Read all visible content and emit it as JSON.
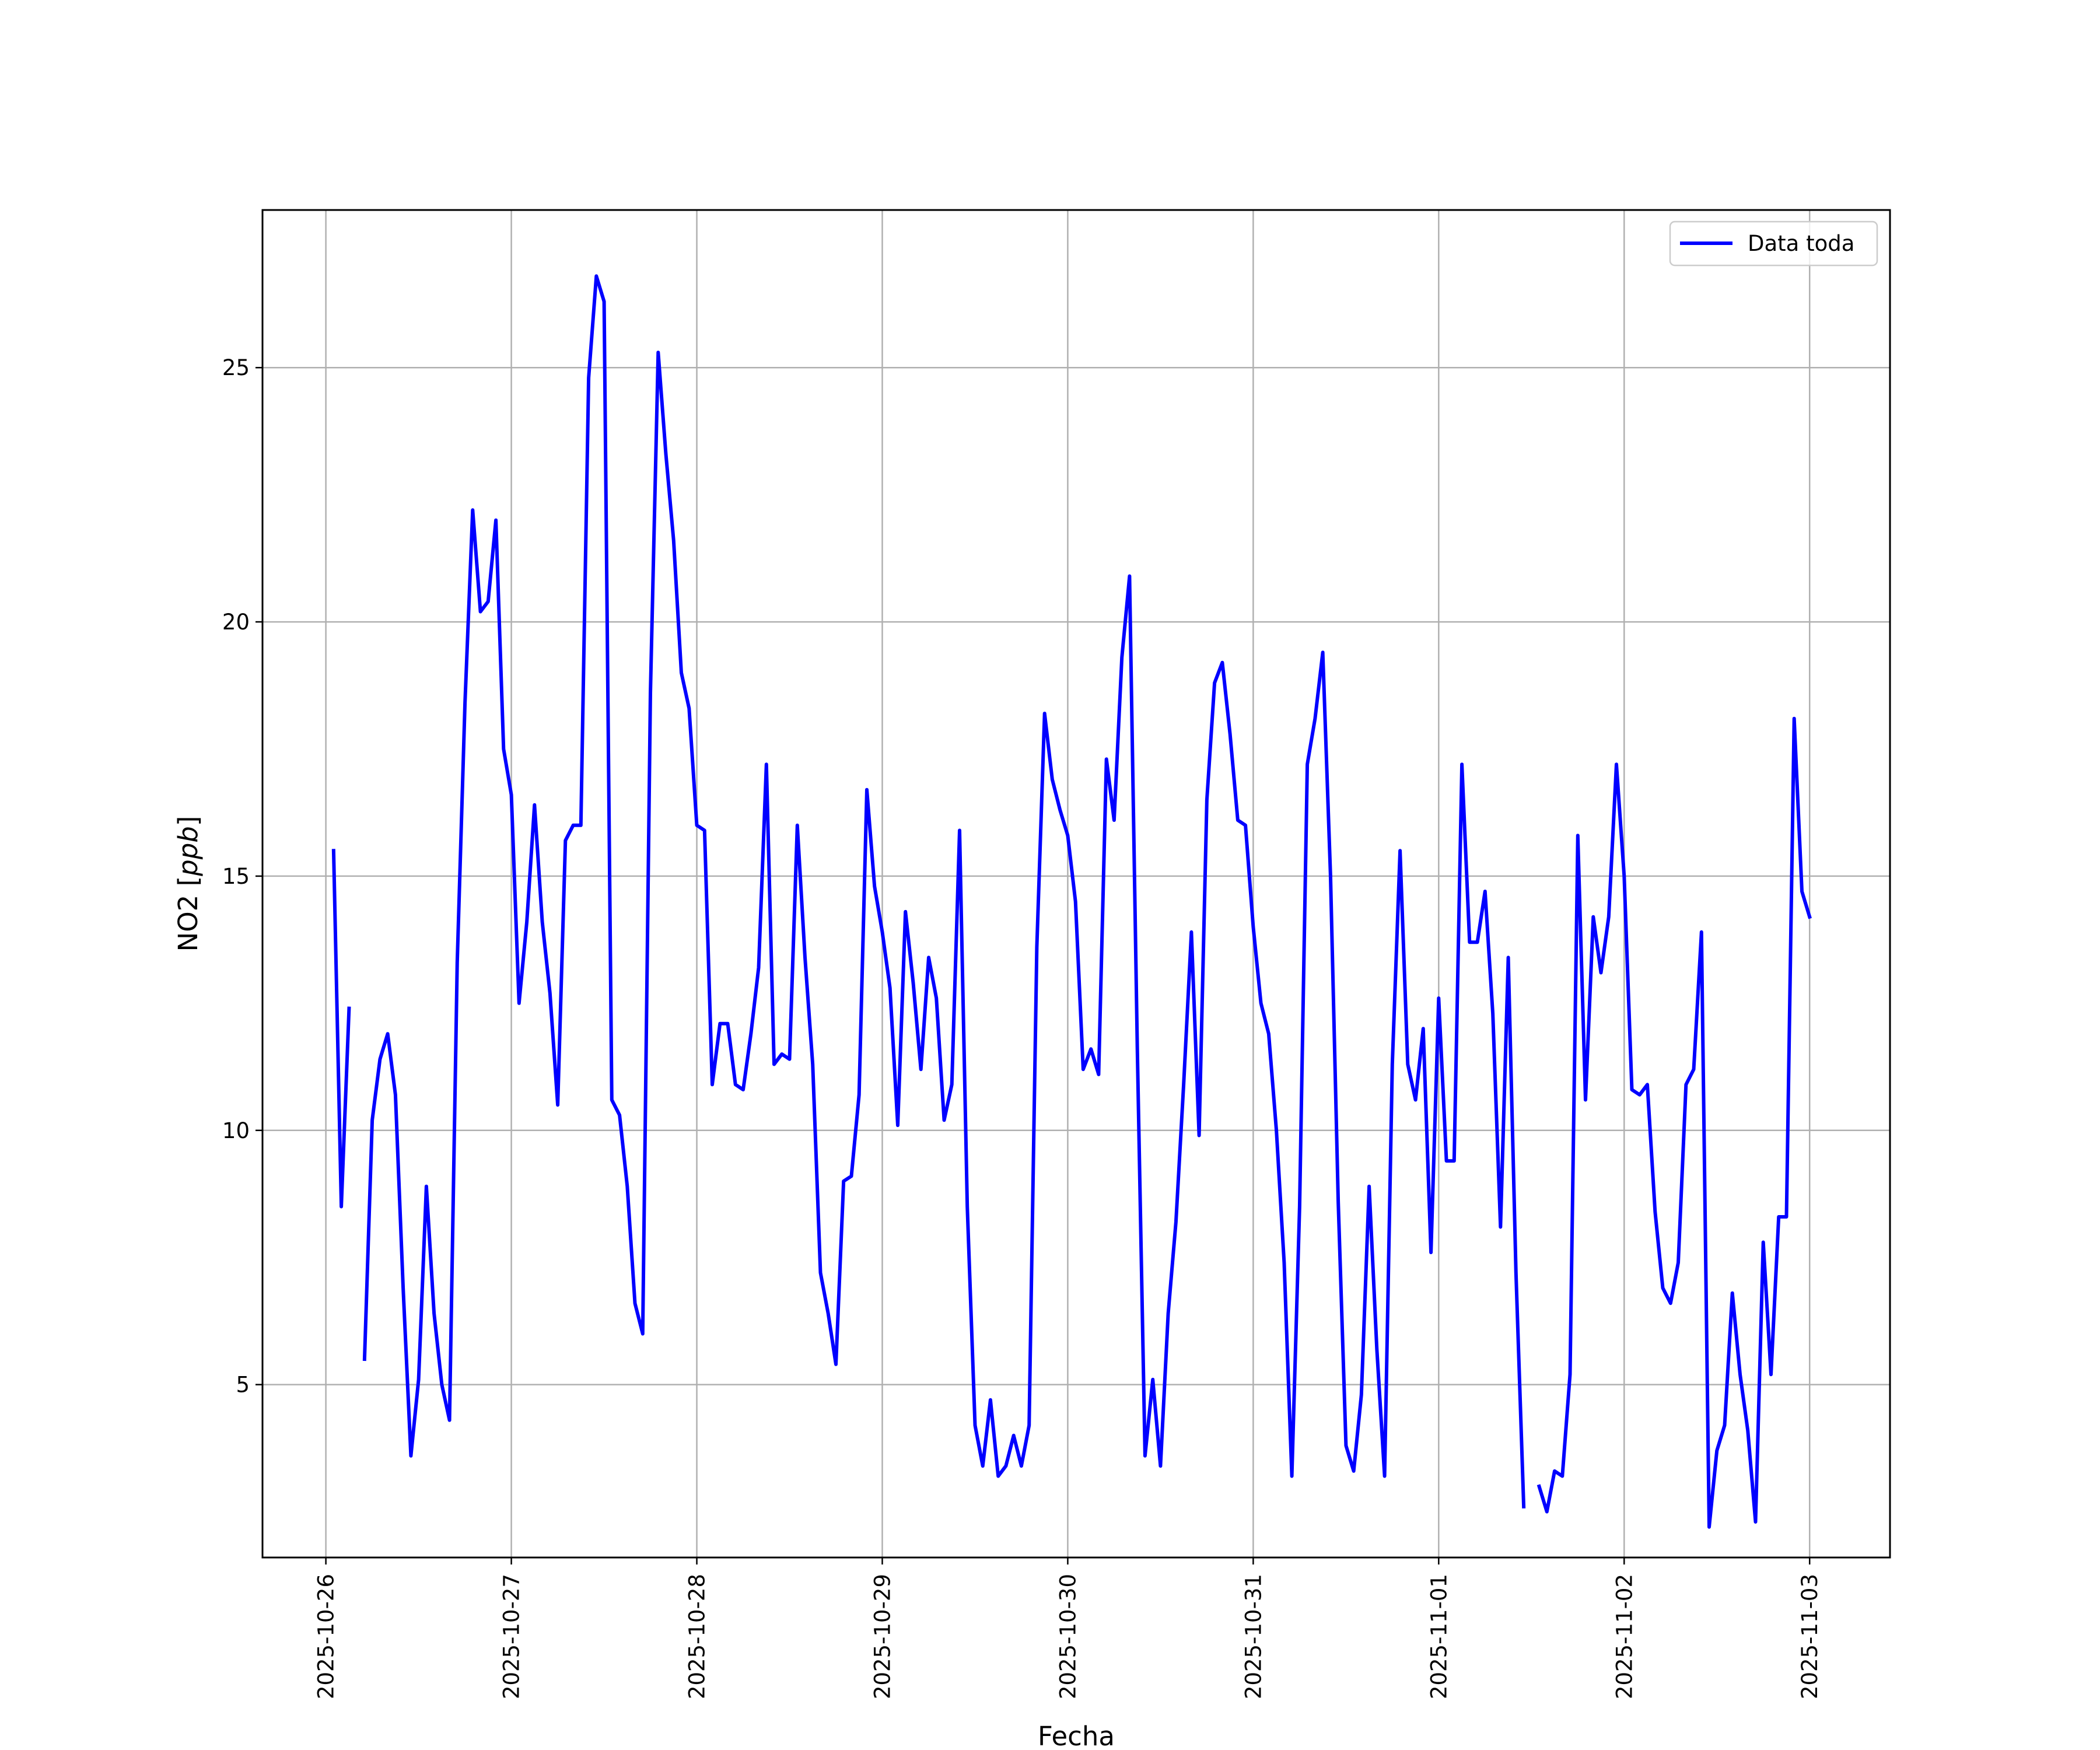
{
  "chart_data": {
    "type": "line",
    "xlabel": "Fecha",
    "ylabel_text": "NO2 [",
    "ylabel_italic": "ppb",
    "ylabel_end": "]",
    "x_ticks": [
      "2025-10-26",
      "2025-10-27",
      "2025-10-28",
      "2025-10-29",
      "2025-10-30",
      "2025-10-31",
      "2025-11-01",
      "2025-11-02",
      "2025-11-03"
    ],
    "y_ticks": [
      5,
      10,
      15,
      20,
      25
    ],
    "xlim": [
      "2025-10-25 15:48",
      "2025-11-03 10:24"
    ],
    "ylim": [
      1.6,
      28.1
    ],
    "grid": true,
    "legend_position": "top-right",
    "colors": {
      "series": "#0000ff",
      "grid": "#b0b0b0",
      "frame": "#000000"
    },
    "series": [
      {
        "name": "Data toda",
        "x": [
          "2025-10-26 01:00",
          "2025-10-26 02:00",
          "2025-10-26 03:00",
          "2025-10-26 04:00",
          "2025-10-26 05:00",
          "2025-10-26 06:00",
          "2025-10-26 07:00",
          "2025-10-26 08:00",
          "2025-10-26 09:00",
          "2025-10-26 10:00",
          "2025-10-26 11:00",
          "2025-10-26 12:00",
          "2025-10-26 13:00",
          "2025-10-26 14:00",
          "2025-10-26 15:00",
          "2025-10-26 16:00",
          "2025-10-26 17:00",
          "2025-10-26 18:00",
          "2025-10-26 19:00",
          "2025-10-26 20:00",
          "2025-10-26 21:00",
          "2025-10-26 22:00",
          "2025-10-26 23:00",
          "2025-10-27 00:00",
          "2025-10-27 01:00",
          "2025-10-27 02:00",
          "2025-10-27 03:00",
          "2025-10-27 04:00",
          "2025-10-27 05:00",
          "2025-10-27 06:00",
          "2025-10-27 07:00",
          "2025-10-27 08:00",
          "2025-10-27 09:00",
          "2025-10-27 10:00",
          "2025-10-27 11:00",
          "2025-10-27 12:00",
          "2025-10-27 13:00",
          "2025-10-27 14:00",
          "2025-10-27 15:00",
          "2025-10-27 16:00",
          "2025-10-27 17:00",
          "2025-10-27 18:00",
          "2025-10-27 19:00",
          "2025-10-27 20:00",
          "2025-10-27 21:00",
          "2025-10-27 22:00",
          "2025-10-27 23:00",
          "2025-10-28 00:00",
          "2025-10-28 01:00",
          "2025-10-28 02:00",
          "2025-10-28 03:00",
          "2025-10-28 04:00",
          "2025-10-28 05:00",
          "2025-10-28 06:00",
          "2025-10-28 07:00",
          "2025-10-28 08:00",
          "2025-10-28 09:00",
          "2025-10-28 10:00",
          "2025-10-28 11:00",
          "2025-10-28 12:00",
          "2025-10-28 13:00",
          "2025-10-28 14:00",
          "2025-10-28 15:00",
          "2025-10-28 16:00",
          "2025-10-28 17:00",
          "2025-10-28 18:00",
          "2025-10-28 19:00",
          "2025-10-28 20:00",
          "2025-10-28 21:00",
          "2025-10-28 22:00",
          "2025-10-28 23:00",
          "2025-10-29 00:00",
          "2025-10-29 01:00",
          "2025-10-29 02:00",
          "2025-10-29 03:00",
          "2025-10-29 04:00",
          "2025-10-29 05:00",
          "2025-10-29 06:00",
          "2025-10-29 07:00",
          "2025-10-29 08:00",
          "2025-10-29 09:00",
          "2025-10-29 10:00",
          "2025-10-29 11:00",
          "2025-10-29 12:00",
          "2025-10-29 13:00",
          "2025-10-29 14:00",
          "2025-10-29 15:00",
          "2025-10-29 16:00",
          "2025-10-29 17:00",
          "2025-10-29 18:00",
          "2025-10-29 19:00",
          "2025-10-29 20:00",
          "2025-10-29 21:00",
          "2025-10-29 22:00",
          "2025-10-29 23:00",
          "2025-10-30 00:00",
          "2025-10-30 01:00",
          "2025-10-30 02:00",
          "2025-10-30 03:00",
          "2025-10-30 04:00",
          "2025-10-30 05:00",
          "2025-10-30 06:00",
          "2025-10-30 07:00",
          "2025-10-30 08:00",
          "2025-10-30 09:00",
          "2025-10-30 10:00",
          "2025-10-30 11:00",
          "2025-10-30 12:00",
          "2025-10-30 13:00",
          "2025-10-30 14:00",
          "2025-10-30 15:00",
          "2025-10-30 16:00",
          "2025-10-30 17:00",
          "2025-10-30 18:00",
          "2025-10-30 19:00",
          "2025-10-30 20:00",
          "2025-10-30 21:00",
          "2025-10-30 22:00",
          "2025-10-30 23:00",
          "2025-10-31 00:00",
          "2025-10-31 01:00",
          "2025-10-31 02:00",
          "2025-10-31 03:00",
          "2025-10-31 04:00",
          "2025-10-31 05:00",
          "2025-10-31 06:00",
          "2025-10-31 07:00",
          "2025-10-31 08:00",
          "2025-10-31 09:00",
          "2025-10-31 10:00",
          "2025-10-31 11:00",
          "2025-10-31 12:00",
          "2025-10-31 13:00",
          "2025-10-31 14:00",
          "2025-10-31 15:00",
          "2025-10-31 16:00",
          "2025-10-31 17:00",
          "2025-10-31 18:00",
          "2025-10-31 19:00",
          "2025-10-31 20:00",
          "2025-10-31 21:00",
          "2025-10-31 22:00",
          "2025-10-31 23:00",
          "2025-11-01 00:00",
          "2025-11-01 01:00",
          "2025-11-01 02:00",
          "2025-11-01 03:00",
          "2025-11-01 04:00",
          "2025-11-01 05:00",
          "2025-11-01 06:00",
          "2025-11-01 07:00",
          "2025-11-01 08:00",
          "2025-11-01 09:00",
          "2025-11-01 10:00",
          "2025-11-01 11:00",
          "2025-11-01 12:00",
          "2025-11-01 13:00",
          "2025-11-01 14:00",
          "2025-11-01 15:00",
          "2025-11-01 16:00",
          "2025-11-01 17:00",
          "2025-11-01 18:00",
          "2025-11-01 19:00",
          "2025-11-01 20:00",
          "2025-11-01 21:00",
          "2025-11-01 22:00",
          "2025-11-01 23:00",
          "2025-11-02 00:00",
          "2025-11-02 01:00",
          "2025-11-02 02:00",
          "2025-11-02 03:00",
          "2025-11-02 04:00",
          "2025-11-02 05:00",
          "2025-11-02 06:00",
          "2025-11-02 07:00",
          "2025-11-02 08:00",
          "2025-11-02 09:00",
          "2025-11-02 10:00",
          "2025-11-02 11:00",
          "2025-11-02 12:00",
          "2025-11-02 13:00",
          "2025-11-02 14:00",
          "2025-11-02 15:00",
          "2025-11-02 16:00",
          "2025-11-02 17:00",
          "2025-11-02 18:00",
          "2025-11-02 19:00",
          "2025-11-02 20:00",
          "2025-11-02 21:00",
          "2025-11-02 22:00",
          "2025-11-02 23:00",
          "2025-11-03 00:00"
        ],
        "values": [
          15.5,
          8.5,
          12.4,
          null,
          5.5,
          10.2,
          11.4,
          11.9,
          10.7,
          6.9,
          3.6,
          5.1,
          8.9,
          6.4,
          5.0,
          4.3,
          13.3,
          18.4,
          22.2,
          20.2,
          20.4,
          22.0,
          17.5,
          16.6,
          12.5,
          14.1,
          16.4,
          14.1,
          12.7,
          10.5,
          15.7,
          16.0,
          16.0,
          24.8,
          26.8,
          26.3,
          10.6,
          10.3,
          8.9,
          6.6,
          6.0,
          18.6,
          25.3,
          23.3,
          21.6,
          19.0,
          18.3,
          16.0,
          15.9,
          10.9,
          12.1,
          12.1,
          10.9,
          10.8,
          11.9,
          13.2,
          17.2,
          11.3,
          11.5,
          11.4,
          16.0,
          13.4,
          11.3,
          7.2,
          6.4,
          5.4,
          9.0,
          9.1,
          10.7,
          16.7,
          14.8,
          13.9,
          12.8,
          10.1,
          14.3,
          12.9,
          11.2,
          13.4,
          12.6,
          10.2,
          10.9,
          15.9,
          8.5,
          4.2,
          3.4,
          4.7,
          3.2,
          3.4,
          4.0,
          3.4,
          4.2,
          13.6,
          18.2,
          16.9,
          16.3,
          15.8,
          14.5,
          11.2,
          11.6,
          11.1,
          17.3,
          16.1,
          19.3,
          20.9,
          11.6,
          3.6,
          5.1,
          3.4,
          6.4,
          8.2,
          10.9,
          13.9,
          9.9,
          16.5,
          18.8,
          19.2,
          17.8,
          16.1,
          16.0,
          14.0,
          12.5,
          11.9,
          10.0,
          7.4,
          3.2,
          8.5,
          17.2,
          18.1,
          19.4,
          15.0,
          8.6,
          3.8,
          3.3,
          4.8,
          8.9,
          5.7,
          3.2,
          11.3,
          15.5,
          11.3,
          10.6,
          12.0,
          7.6,
          12.6,
          9.4,
          9.4,
          17.2,
          13.7,
          13.7,
          14.7,
          12.3,
          8.1,
          13.4,
          7.2,
          2.6,
          null,
          3.0,
          2.5,
          3.3,
          3.2,
          5.2,
          15.8,
          10.6,
          14.2,
          13.1,
          14.2,
          17.2,
          15.0,
          10.8,
          10.7,
          10.9,
          8.4,
          6.9,
          6.6,
          7.4,
          10.9,
          11.2,
          13.9,
          2.2,
          3.7,
          4.2,
          6.8,
          5.2,
          4.1,
          2.3,
          7.8,
          5.2,
          8.3,
          8.3,
          18.1,
          14.7,
          14.2
        ]
      }
    ]
  }
}
